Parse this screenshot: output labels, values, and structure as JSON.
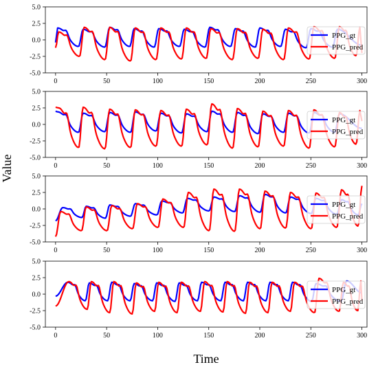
{
  "figure": {
    "xlabel": "Time",
    "ylabel": "Value"
  },
  "colors": {
    "gt": "#0000ff",
    "pred": "#ff0000",
    "frame": "#000000"
  },
  "chart_data": [
    {
      "type": "line",
      "xlim": [
        -10,
        305
      ],
      "ylim": [
        -5.0,
        2.5
      ],
      "xticks": [
        "0",
        "50",
        "100",
        "150",
        "200",
        "250",
        "300"
      ],
      "xtick_values": [
        0,
        50,
        100,
        150,
        200,
        250,
        300
      ],
      "yticks": [
        "-5.0",
        "-2.5",
        "0.0",
        "2.5",
        "5.0"
      ],
      "ytick_values": [
        -5.0,
        -2.5,
        0.0,
        2.5,
        5.0
      ],
      "legend": {
        "placement": "right",
        "entries": [
          "PPG_gt",
          "PPG_pred"
        ]
      },
      "series": [
        {
          "name": "PPG_gt",
          "color": "#0000ff",
          "start": -0.4,
          "peaks": [
            2,
            27,
            53,
            77,
            101,
            126,
            151,
            176,
            200,
            225,
            250,
            276
          ],
          "peak_values": [
            1.8,
            1.6,
            1.9,
            1.7,
            1.7,
            1.6,
            1.9,
            1.7,
            1.8,
            1.6,
            1.7,
            1.6
          ],
          "trough_values": [
            -1.0,
            -1.1,
            -1.0,
            -1.1,
            -1.0,
            -1.1,
            -1.0,
            -1.1,
            -1.0,
            -1.2,
            -1.1,
            -1.3
          ],
          "end": -0.8
        },
        {
          "name": "PPG_pred",
          "color": "#ff0000",
          "start": -1.2,
          "peaks": [
            3,
            28,
            53,
            78,
            103,
            128,
            152,
            178,
            203,
            228,
            253,
            278,
            298
          ],
          "peak_values": [
            1.2,
            1.9,
            1.9,
            1.8,
            1.8,
            1.8,
            1.7,
            1.7,
            1.6,
            1.8,
            2.0,
            2.0,
            1.9
          ],
          "trough_values": [
            -2.5,
            -3.0,
            -3.2,
            -3.0,
            -2.9,
            -2.8,
            -3.0,
            -2.8,
            -3.0,
            -2.9,
            -2.8,
            -2.4,
            -2.3
          ],
          "end": -2.0
        }
      ]
    },
    {
      "type": "line",
      "xlim": [
        -10,
        305
      ],
      "ylim": [
        -5.0,
        2.5
      ],
      "xticks": [
        "0",
        "50",
        "100",
        "150",
        "200",
        "250",
        "300"
      ],
      "xtick_values": [
        0,
        50,
        100,
        150,
        200,
        250,
        300
      ],
      "yticks": [
        "-5.0",
        "-2.5",
        "0.0",
        "2.5",
        "5.0"
      ],
      "ytick_values": [
        -5.0,
        -2.5,
        0.0,
        2.5,
        5.0
      ],
      "legend": {
        "placement": "right",
        "entries": [
          "PPG_gt",
          "PPG_pred"
        ]
      },
      "series": [
        {
          "name": "PPG_gt",
          "color": "#0000ff",
          "start": 2.0,
          "peaks": [
            2,
            27,
            53,
            78,
            103,
            128,
            153,
            178,
            203,
            228,
            253,
            278
          ],
          "peak_values": [
            1.9,
            1.7,
            1.8,
            1.9,
            1.7,
            1.6,
            2.0,
            1.8,
            1.6,
            1.7,
            1.8,
            1.6
          ],
          "trough_values": [
            -1.2,
            -1.1,
            -1.2,
            -1.0,
            -1.3,
            -1.1,
            -1.2,
            -1.4,
            -1.2,
            -1.3,
            -1.2,
            -1.1
          ],
          "end": -0.6
        },
        {
          "name": "PPG_pred",
          "color": "#ff0000",
          "start": 2.6,
          "peaks": [
            3,
            27,
            53,
            78,
            103,
            128,
            153,
            178,
            203,
            228,
            253,
            278,
            298
          ],
          "peak_values": [
            2.5,
            2.6,
            2.3,
            2.2,
            2.1,
            2.3,
            3.1,
            2.4,
            2.0,
            2.1,
            2.2,
            1.8,
            2.1
          ],
          "trough_values": [
            -3.5,
            -3.7,
            -3.5,
            -3.3,
            -3.3,
            -3.1,
            -3.6,
            -3.4,
            -3.3,
            -3.6,
            -3.4,
            -3.0,
            -2.7
          ],
          "end": 0.5
        }
      ]
    },
    {
      "type": "line",
      "xlim": [
        -10,
        305
      ],
      "ylim": [
        -5.0,
        2.5
      ],
      "xticks": [
        "0",
        "50",
        "100",
        "150",
        "200",
        "250",
        "300"
      ],
      "xtick_values": [
        0,
        50,
        100,
        150,
        200,
        250,
        300
      ],
      "yticks": [
        "-5.0",
        "-2.5",
        "0.0",
        "2.5",
        "5.0"
      ],
      "ytick_values": [
        -5.0,
        -2.5,
        0.0,
        2.5,
        5.0
      ],
      "legend": {
        "placement": "right",
        "entries": [
          "PPG_gt",
          "PPG_pred"
        ]
      },
      "series": [
        {
          "name": "PPG_gt",
          "color": "#0000ff",
          "start": -1.8,
          "peaks": [
            7,
            30,
            53,
            78,
            104,
            129,
            155,
            180,
            205,
            230,
            255,
            280,
            300
          ],
          "peak_values": [
            0.2,
            0.4,
            0.6,
            0.8,
            1.2,
            1.6,
            1.8,
            2.0,
            2.2,
            1.8,
            1.6,
            1.4,
            0.8
          ],
          "trough_values": [
            -1.3,
            -1.4,
            -1.1,
            -0.9,
            -0.6,
            -0.3,
            -0.4,
            -0.5,
            -0.6,
            -0.7,
            -0.8,
            -0.9,
            -0.9
          ],
          "end": 0.6
        },
        {
          "name": "PPG_pred",
          "color": "#ff0000",
          "start": -4.2,
          "peaks": [
            5,
            30,
            55,
            80,
            105,
            130,
            155,
            180,
            205,
            230,
            255,
            280,
            300
          ],
          "peak_values": [
            -0.4,
            0.3,
            0.5,
            0.8,
            1.5,
            2.5,
            3.0,
            3.0,
            2.7,
            2.5,
            2.4,
            2.9,
            3.5
          ],
          "trough_values": [
            -3.3,
            -3.3,
            -3.0,
            -2.8,
            -2.8,
            -3.3,
            -3.4,
            -3.0,
            -2.9,
            -3.0,
            -2.8,
            -2.6,
            -2.6
          ],
          "end": 3.6
        }
      ]
    },
    {
      "type": "line",
      "xlim": [
        -10,
        305
      ],
      "ylim": [
        -5.0,
        2.5
      ],
      "xticks": [
        "0",
        "50",
        "100",
        "150",
        "200",
        "250",
        "300"
      ],
      "xtick_values": [
        0,
        50,
        100,
        150,
        200,
        250,
        300
      ],
      "yticks": [
        "-5.0",
        "-2.5",
        "0.0",
        "2.5",
        "5.0"
      ],
      "ytick_values": [
        -5.0,
        -2.5,
        0.0,
        2.5,
        5.0
      ],
      "legend": {
        "placement": "right",
        "entries": [
          "PPG_gt",
          "PPG_pred"
        ]
      },
      "series": [
        {
          "name": "PPG_gt",
          "color": "#0000ff",
          "start": -0.3,
          "peaks": [
            12,
            33,
            55,
            77,
            99,
            121,
            143,
            166,
            188,
            210,
            232,
            255,
            285
          ],
          "peak_values": [
            1.8,
            1.7,
            1.8,
            1.6,
            1.7,
            1.7,
            1.8,
            1.8,
            1.8,
            1.8,
            1.8,
            1.6,
            2.0
          ],
          "trough_values": [
            -1.0,
            -1.0,
            -1.0,
            -1.0,
            -1.1,
            -1.0,
            -1.0,
            -1.0,
            -1.0,
            -1.0,
            -1.1,
            -1.1,
            -1.0
          ],
          "end": 0.2
        },
        {
          "name": "PPG_pred",
          "color": "#ff0000",
          "start": -1.8,
          "peaks": [
            13,
            35,
            57,
            79,
            101,
            123,
            146,
            168,
            190,
            212,
            234,
            258,
            282,
            299
          ],
          "peak_values": [
            1.9,
            1.9,
            1.9,
            1.7,
            1.8,
            1.8,
            1.9,
            1.9,
            1.8,
            1.8,
            1.8,
            2.4,
            1.8,
            2.0
          ],
          "trough_values": [
            -2.3,
            -2.8,
            -3.0,
            -2.6,
            -2.8,
            -2.6,
            -2.7,
            -2.9,
            -2.8,
            -2.6,
            -2.8,
            -2.6,
            -2.5,
            -2.4
          ],
          "end": -1.0
        }
      ]
    }
  ]
}
